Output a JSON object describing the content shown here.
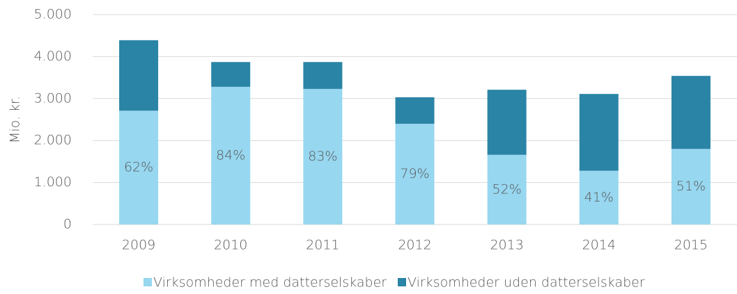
{
  "chart_data": {
    "type": "stacked_bar",
    "ylabel": "Mio. kr.",
    "categories": [
      "2009",
      "2010",
      "2011",
      "2012",
      "2013",
      "2014",
      "2015"
    ],
    "series": [
      {
        "name": "Virksomheder med datterselskaber",
        "color": "#97d7f0",
        "values": [
          2710,
          3280,
          3230,
          2400,
          1660,
          1280,
          1800
        ],
        "value_labels": [
          "62%",
          "84%",
          "83%",
          "79%",
          "52%",
          "41%",
          "51%"
        ]
      },
      {
        "name": "Virksomheder uden datterselskaber",
        "color": "#2a84a6",
        "values": [
          1680,
          590,
          640,
          630,
          1550,
          1830,
          1740
        ]
      }
    ],
    "ylim": [
      0,
      5000
    ],
    "yticks": [
      0,
      {
        "value": 1000,
        "label": "1.000"
      },
      {
        "value": 2000,
        "label": "2.000"
      },
      {
        "value": 3000,
        "label": "3.000"
      },
      {
        "value": 4000,
        "label": "4.000"
      },
      {
        "value": 5000,
        "label": "5.000"
      }
    ],
    "grid": true,
    "legend": "bottom"
  }
}
